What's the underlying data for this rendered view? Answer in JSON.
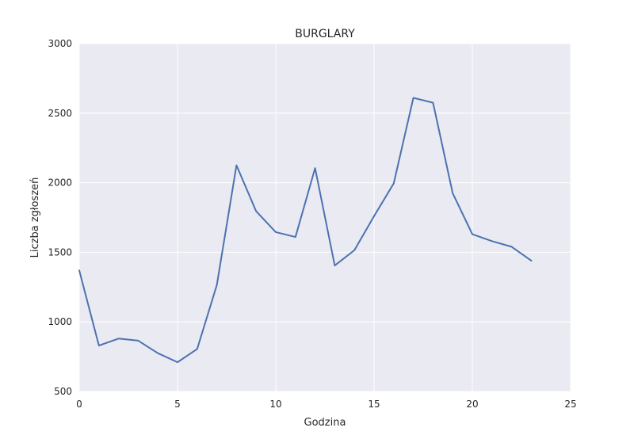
{
  "chart_data": {
    "type": "line",
    "title": "BURGLARY",
    "xlabel": "Godzina",
    "ylabel": "Liczba zgłoszeń",
    "xlim": [
      0,
      25
    ],
    "ylim": [
      500,
      3000
    ],
    "xticks": [
      0,
      5,
      10,
      15,
      20,
      25
    ],
    "yticks": [
      500,
      1000,
      1500,
      2000,
      2500,
      3000
    ],
    "grid": true,
    "series": [
      {
        "color": "#4c72b0",
        "x": [
          0,
          1,
          2,
          3,
          4,
          5,
          6,
          7,
          8,
          9,
          10,
          11,
          12,
          13,
          14,
          15,
          16,
          17,
          18,
          19,
          20,
          21,
          22,
          23
        ],
        "y": [
          1370,
          830,
          880,
          865,
          775,
          710,
          805,
          1265,
          2125,
          1795,
          1645,
          1610,
          2105,
          1405,
          1515,
          1760,
          1995,
          2610,
          2575,
          1925,
          1630,
          1580,
          1540,
          1440
        ]
      }
    ]
  },
  "colors": {
    "plot_background": "#eaeaf2",
    "grid": "#ffffff",
    "line": "#4c72b0",
    "text": "#262626"
  }
}
